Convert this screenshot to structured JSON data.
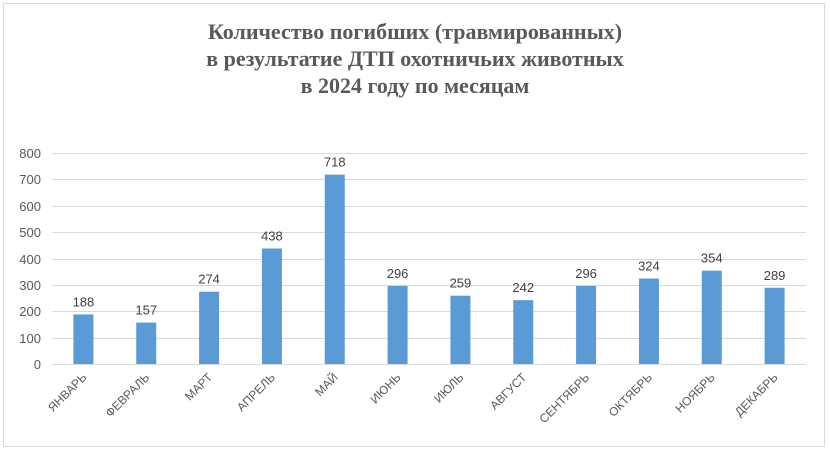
{
  "chart_data": {
    "type": "bar",
    "title_lines": [
      "Количество погибших (травмированных)",
      "в результатие ДТП  охотничьих животных",
      "в 2024 году по месяцам"
    ],
    "categories": [
      "ЯНВАРЬ",
      "ФЕВРАЛЬ",
      "МАРТ",
      "АПРЕЛЬ",
      "МАЙ",
      "ИЮНЬ",
      "ИЮЛЬ",
      "АВГУСТ",
      "СЕНТЯБРЬ",
      "ОКТЯБРЬ",
      "НОЯБРЬ",
      "ДЕКАБРЬ"
    ],
    "values": [
      188,
      157,
      274,
      438,
      718,
      296,
      259,
      242,
      296,
      324,
      354,
      289
    ],
    "ylim": [
      0,
      800
    ],
    "yticks": [
      0,
      100,
      200,
      300,
      400,
      500,
      600,
      700,
      800
    ],
    "grid": true,
    "legend": "none",
    "colors": {
      "bar": "#5b9bd5",
      "grid": "#d9d9d9",
      "title": "#595959"
    }
  }
}
